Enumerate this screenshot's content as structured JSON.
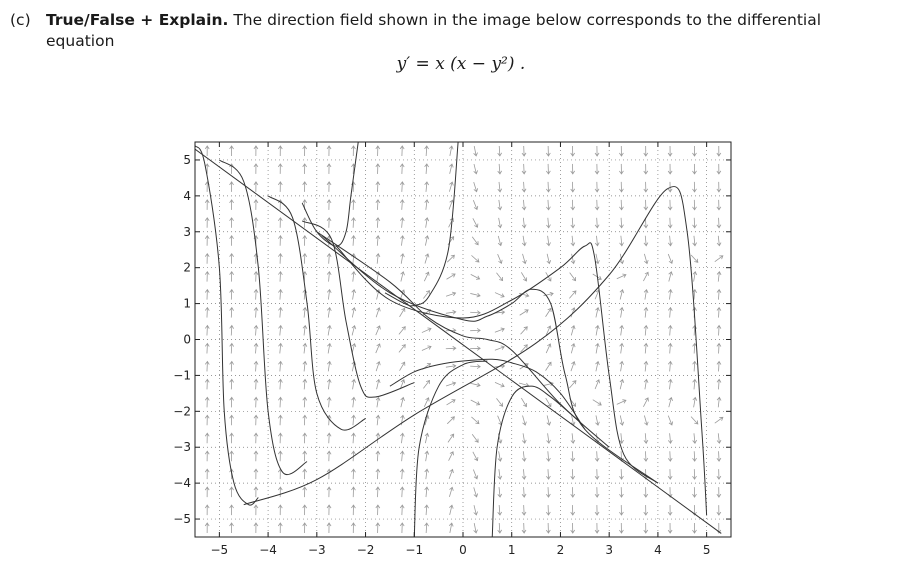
{
  "question": {
    "label": "(c)",
    "title": "True/False + Explain.",
    "text_line1": "The direction field shown in the image below corresponds to the differential",
    "text_line2": "equation"
  },
  "equation": "y′ = x (x − y²) .",
  "chart_data": {
    "type": "line",
    "title": "",
    "xlabel": "",
    "ylabel": "",
    "xlim": [
      -5.5,
      5.5
    ],
    "ylim": [
      -5.5,
      5.5
    ],
    "grid": true,
    "grid_style": "dotted",
    "x_ticks": [
      -5,
      -4,
      -3,
      -2,
      -1,
      0,
      1,
      2,
      3,
      4,
      5
    ],
    "x_tick_labels": [
      "−5",
      "−4",
      "−3",
      "−2",
      "−1",
      "0",
      "1",
      "2",
      "3",
      "4",
      "5"
    ],
    "y_ticks": [
      5,
      4,
      3,
      2,
      1,
      0,
      -1,
      -2,
      -3,
      -4,
      -5
    ],
    "y_tick_labels": [
      "5",
      "4",
      "3",
      "2",
      "1",
      "0",
      "−1",
      "−2",
      "−3",
      "−4",
      "−5"
    ],
    "line_color": "#333333",
    "arrow_color": "#9a9a9a",
    "series": [
      {
        "x": [
          -5.5,
          5.3
        ],
        "y": [
          5.3,
          -5.4
        ]
      },
      {
        "x": [
          -4.5,
          -3.0,
          -1.0,
          1.5,
          3.0,
          4.2,
          4.6,
          4.9,
          5.0
        ],
        "y": [
          -4.6,
          -3.9,
          -2.1,
          -0.1,
          1.8,
          4.2,
          3.0,
          -2.5,
          -4.9
        ]
      },
      {
        "x": [
          -5.5,
          -5.3,
          -5.0,
          -4.9,
          -4.7,
          -4.4,
          -4.2
        ],
        "y": [
          5.4,
          4.9,
          2.0,
          -2.0,
          -4.0,
          -4.6,
          -4.4
        ]
      },
      {
        "x": [
          -5.0,
          -4.5,
          -4.2,
          -4.0,
          -3.7,
          -3.2
        ],
        "y": [
          5.0,
          4.4,
          2.0,
          -2.0,
          -3.7,
          -3.4
        ]
      },
      {
        "x": [
          -4.0,
          -3.5,
          -3.2,
          -3.0,
          -2.5,
          -2.0
        ],
        "y": [
          4.0,
          3.4,
          1.0,
          -1.5,
          -2.5,
          -2.2
        ]
      },
      {
        "x": [
          -3.3,
          -2.7,
          -2.4,
          -2.1,
          -1.8,
          -1.0
        ],
        "y": [
          3.3,
          2.8,
          0.5,
          -1.3,
          -1.6,
          -1.2
        ]
      },
      {
        "x": [
          -3.0,
          -1.5,
          -0.7,
          0.0,
          0.5,
          1.0,
          2.0,
          3.0
        ],
        "y": [
          3.0,
          1.6,
          0.6,
          0.1,
          0.0,
          -0.3,
          -1.8,
          -3.0
        ]
      },
      {
        "x": [
          -2.9,
          -1.5,
          0.0,
          0.5,
          1.0,
          1.4,
          1.8,
          2.1,
          2.5,
          4.0
        ],
        "y": [
          2.9,
          1.3,
          0.55,
          0.65,
          1.0,
          1.4,
          1.0,
          -1.0,
          -2.5,
          -4.0
        ]
      },
      {
        "x": [
          -2.6,
          -1.5,
          0.0,
          1.0,
          2.0,
          2.5,
          2.7,
          3.0,
          3.3,
          4.0
        ],
        "y": [
          2.6,
          1.1,
          0.6,
          1.1,
          2.0,
          2.6,
          2.3,
          -1.0,
          -3.2,
          -4.0
        ]
      },
      {
        "x": [
          -3.3,
          -3.0,
          -2.6,
          -2.4,
          -2.3,
          -2.15
        ],
        "y": [
          3.8,
          3.0,
          2.6,
          3.0,
          4.0,
          5.5
        ]
      },
      {
        "x": [
          -1.6,
          -1.2,
          -1.0,
          -0.7,
          -0.3,
          -0.1
        ],
        "y": [
          1.3,
          1.0,
          0.95,
          1.2,
          2.5,
          5.5
        ]
      },
      {
        "x": [
          -1.5,
          -1.0,
          -0.5,
          0.0,
          0.6,
          1.0,
          1.5,
          2.0,
          2.5
        ],
        "y": [
          -1.3,
          -0.9,
          -0.7,
          -0.6,
          -0.55,
          -0.65,
          -0.9,
          -1.5,
          -2.5
        ]
      },
      {
        "x": [
          -1.0,
          -0.9,
          -0.5,
          0.0,
          0.5
        ],
        "y": [
          -5.5,
          -3.0,
          -1.3,
          -0.7,
          -0.6
        ]
      },
      {
        "x": [
          0.6,
          0.7,
          1.0,
          1.4,
          1.8,
          2.4
        ],
        "y": [
          -5.5,
          -3.0,
          -1.6,
          -1.3,
          -1.6,
          -2.3
        ]
      }
    ]
  }
}
